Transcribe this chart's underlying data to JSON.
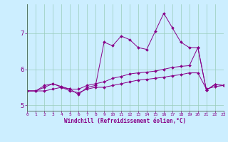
{
  "xlabel": "Windchill (Refroidissement éolien,°C)",
  "bg_color": "#cceeff",
  "line_color": "#880088",
  "grid_color": "#99ccbb",
  "x_values": [
    0,
    1,
    2,
    3,
    4,
    5,
    6,
    7,
    8,
    9,
    10,
    11,
    12,
    13,
    14,
    15,
    16,
    17,
    18,
    19,
    20,
    21,
    22,
    23
  ],
  "line1": [
    5.4,
    5.4,
    5.4,
    5.45,
    5.5,
    5.4,
    5.35,
    5.45,
    5.5,
    5.5,
    5.55,
    5.6,
    5.65,
    5.7,
    5.72,
    5.75,
    5.78,
    5.82,
    5.85,
    5.9,
    5.9,
    5.45,
    5.52,
    5.55
  ],
  "line2": [
    5.4,
    5.4,
    5.55,
    5.6,
    5.5,
    5.45,
    5.45,
    5.55,
    5.6,
    5.65,
    5.75,
    5.8,
    5.87,
    5.9,
    5.92,
    5.95,
    6.0,
    6.05,
    6.08,
    6.1,
    6.6,
    5.42,
    5.58,
    5.55
  ],
  "line3": [
    5.4,
    5.4,
    5.5,
    5.6,
    5.52,
    5.45,
    5.3,
    5.5,
    5.55,
    6.75,
    6.65,
    6.92,
    6.82,
    6.6,
    6.55,
    7.05,
    7.55,
    7.15,
    6.75,
    6.6,
    6.6,
    5.42,
    5.58,
    5.55
  ],
  "ylim": [
    4.85,
    7.8
  ],
  "yticks": [
    5,
    6,
    7
  ],
  "xlim": [
    0,
    23
  ],
  "xtick_labels": [
    "0",
    "1",
    "2",
    "3",
    "4",
    "5",
    "6",
    "7",
    "8",
    "9",
    "10",
    "11",
    "12",
    "13",
    "14",
    "15",
    "16",
    "17",
    "18",
    "19",
    "20",
    "21",
    "22",
    "23"
  ]
}
